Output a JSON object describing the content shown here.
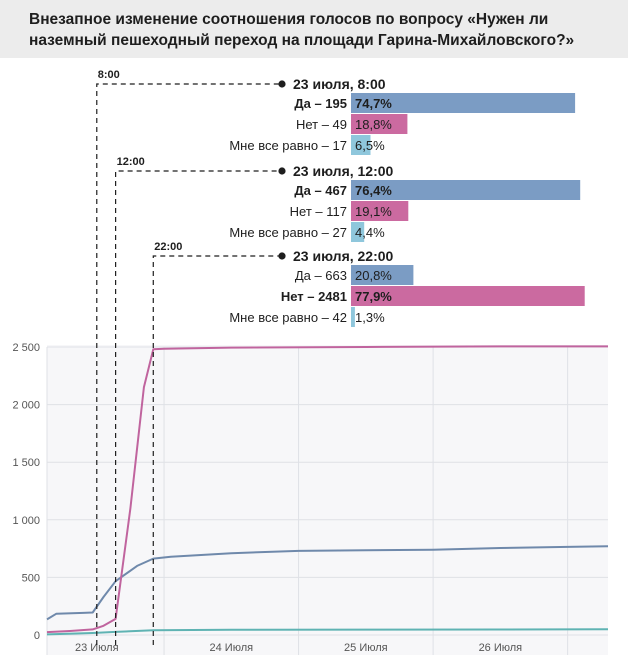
{
  "title": "Внезапное изменение соотношения голосов по вопросу «Нужен ли наземный пешеходный переход на площади Гарина-Михайловского?»",
  "colors": {
    "yes": "#7b9cc4",
    "no": "#cb6aa0",
    "neutral": "#8fc7dc",
    "yes_line": "#6f89ab",
    "no_line": "#c0649e",
    "neutral_line": "#5fb3b3"
  },
  "snapshots": [
    {
      "time_tag": "8:00",
      "title": "23 июля, 8:00",
      "rows": [
        {
          "label": "Да – 195",
          "pct": "74,7%",
          "value": 74.7,
          "bold": true,
          "color": "yes"
        },
        {
          "label": "Нет – 49",
          "pct": "18,8%",
          "value": 18.8,
          "bold": false,
          "color": "no"
        },
        {
          "label": "Мне все равно – 17",
          "pct": "6,5%",
          "value": 6.5,
          "bold": false,
          "color": "neutral"
        }
      ]
    },
    {
      "time_tag": "12:00",
      "title": "23 июля, 12:00",
      "rows": [
        {
          "label": "Да – 467",
          "pct": "76,4%",
          "value": 76.4,
          "bold": true,
          "color": "yes"
        },
        {
          "label": "Нет – 117",
          "pct": "19,1%",
          "value": 19.1,
          "bold": false,
          "color": "no"
        },
        {
          "label": "Мне все равно – 27",
          "pct": "4,4%",
          "value": 4.4,
          "bold": false,
          "color": "neutral"
        }
      ]
    },
    {
      "time_tag": "22:00",
      "title": "23 июля, 22:00",
      "rows": [
        {
          "label": "Да – 663",
          "pct": "20,8%",
          "value": 20.8,
          "bold": false,
          "color": "yes"
        },
        {
          "label": "Нет – 2481",
          "pct": "77,9%",
          "value": 77.9,
          "bold": true,
          "color": "no"
        },
        {
          "label": "Мне все равно – 42",
          "pct": "1,3%",
          "value": 1.3,
          "bold": false,
          "color": "neutral"
        }
      ]
    }
  ],
  "chart_data": {
    "type": "line",
    "x_unit": "day",
    "x_range": [
      22.63,
      26.8
    ],
    "ylim": [
      0,
      2500
    ],
    "y_ticks": [
      0,
      500,
      1000,
      1500,
      2000,
      2500
    ],
    "y_tick_labels": [
      "0",
      "500",
      "1 000",
      "1 500",
      "2 000",
      "2 500"
    ],
    "x_ticks": [
      23,
      24,
      25,
      26
    ],
    "x_tick_labels": [
      "23 Июля",
      "24 Июля",
      "25 Июля",
      "26 Июля"
    ],
    "grid": true,
    "marker_times": [
      23.0,
      23.14,
      23.42
    ],
    "series": [
      {
        "key": "yes",
        "x": [
          22.63,
          22.7,
          22.9,
          22.97,
          23.05,
          23.14,
          23.3,
          23.42,
          23.55,
          24.0,
          24.5,
          25.0,
          25.5,
          26.0,
          26.5,
          26.8
        ],
        "y": [
          135,
          185,
          192,
          195,
          330,
          467,
          600,
          663,
          680,
          710,
          730,
          735,
          740,
          755,
          765,
          770
        ]
      },
      {
        "key": "no",
        "x": [
          22.63,
          22.8,
          22.97,
          23.05,
          23.14,
          23.25,
          23.35,
          23.42,
          23.5,
          24.0,
          25.0,
          26.0,
          26.8
        ],
        "y": [
          25,
          35,
          49,
          80,
          140,
          1100,
          2150,
          2481,
          2485,
          2495,
          2500,
          2505,
          2505
        ]
      },
      {
        "key": "neutral",
        "x": [
          22.63,
          22.97,
          23.14,
          23.42,
          24.0,
          25.0,
          26.0,
          26.8
        ],
        "y": [
          5,
          17,
          27,
          42,
          45,
          47,
          48,
          50
        ]
      }
    ]
  }
}
